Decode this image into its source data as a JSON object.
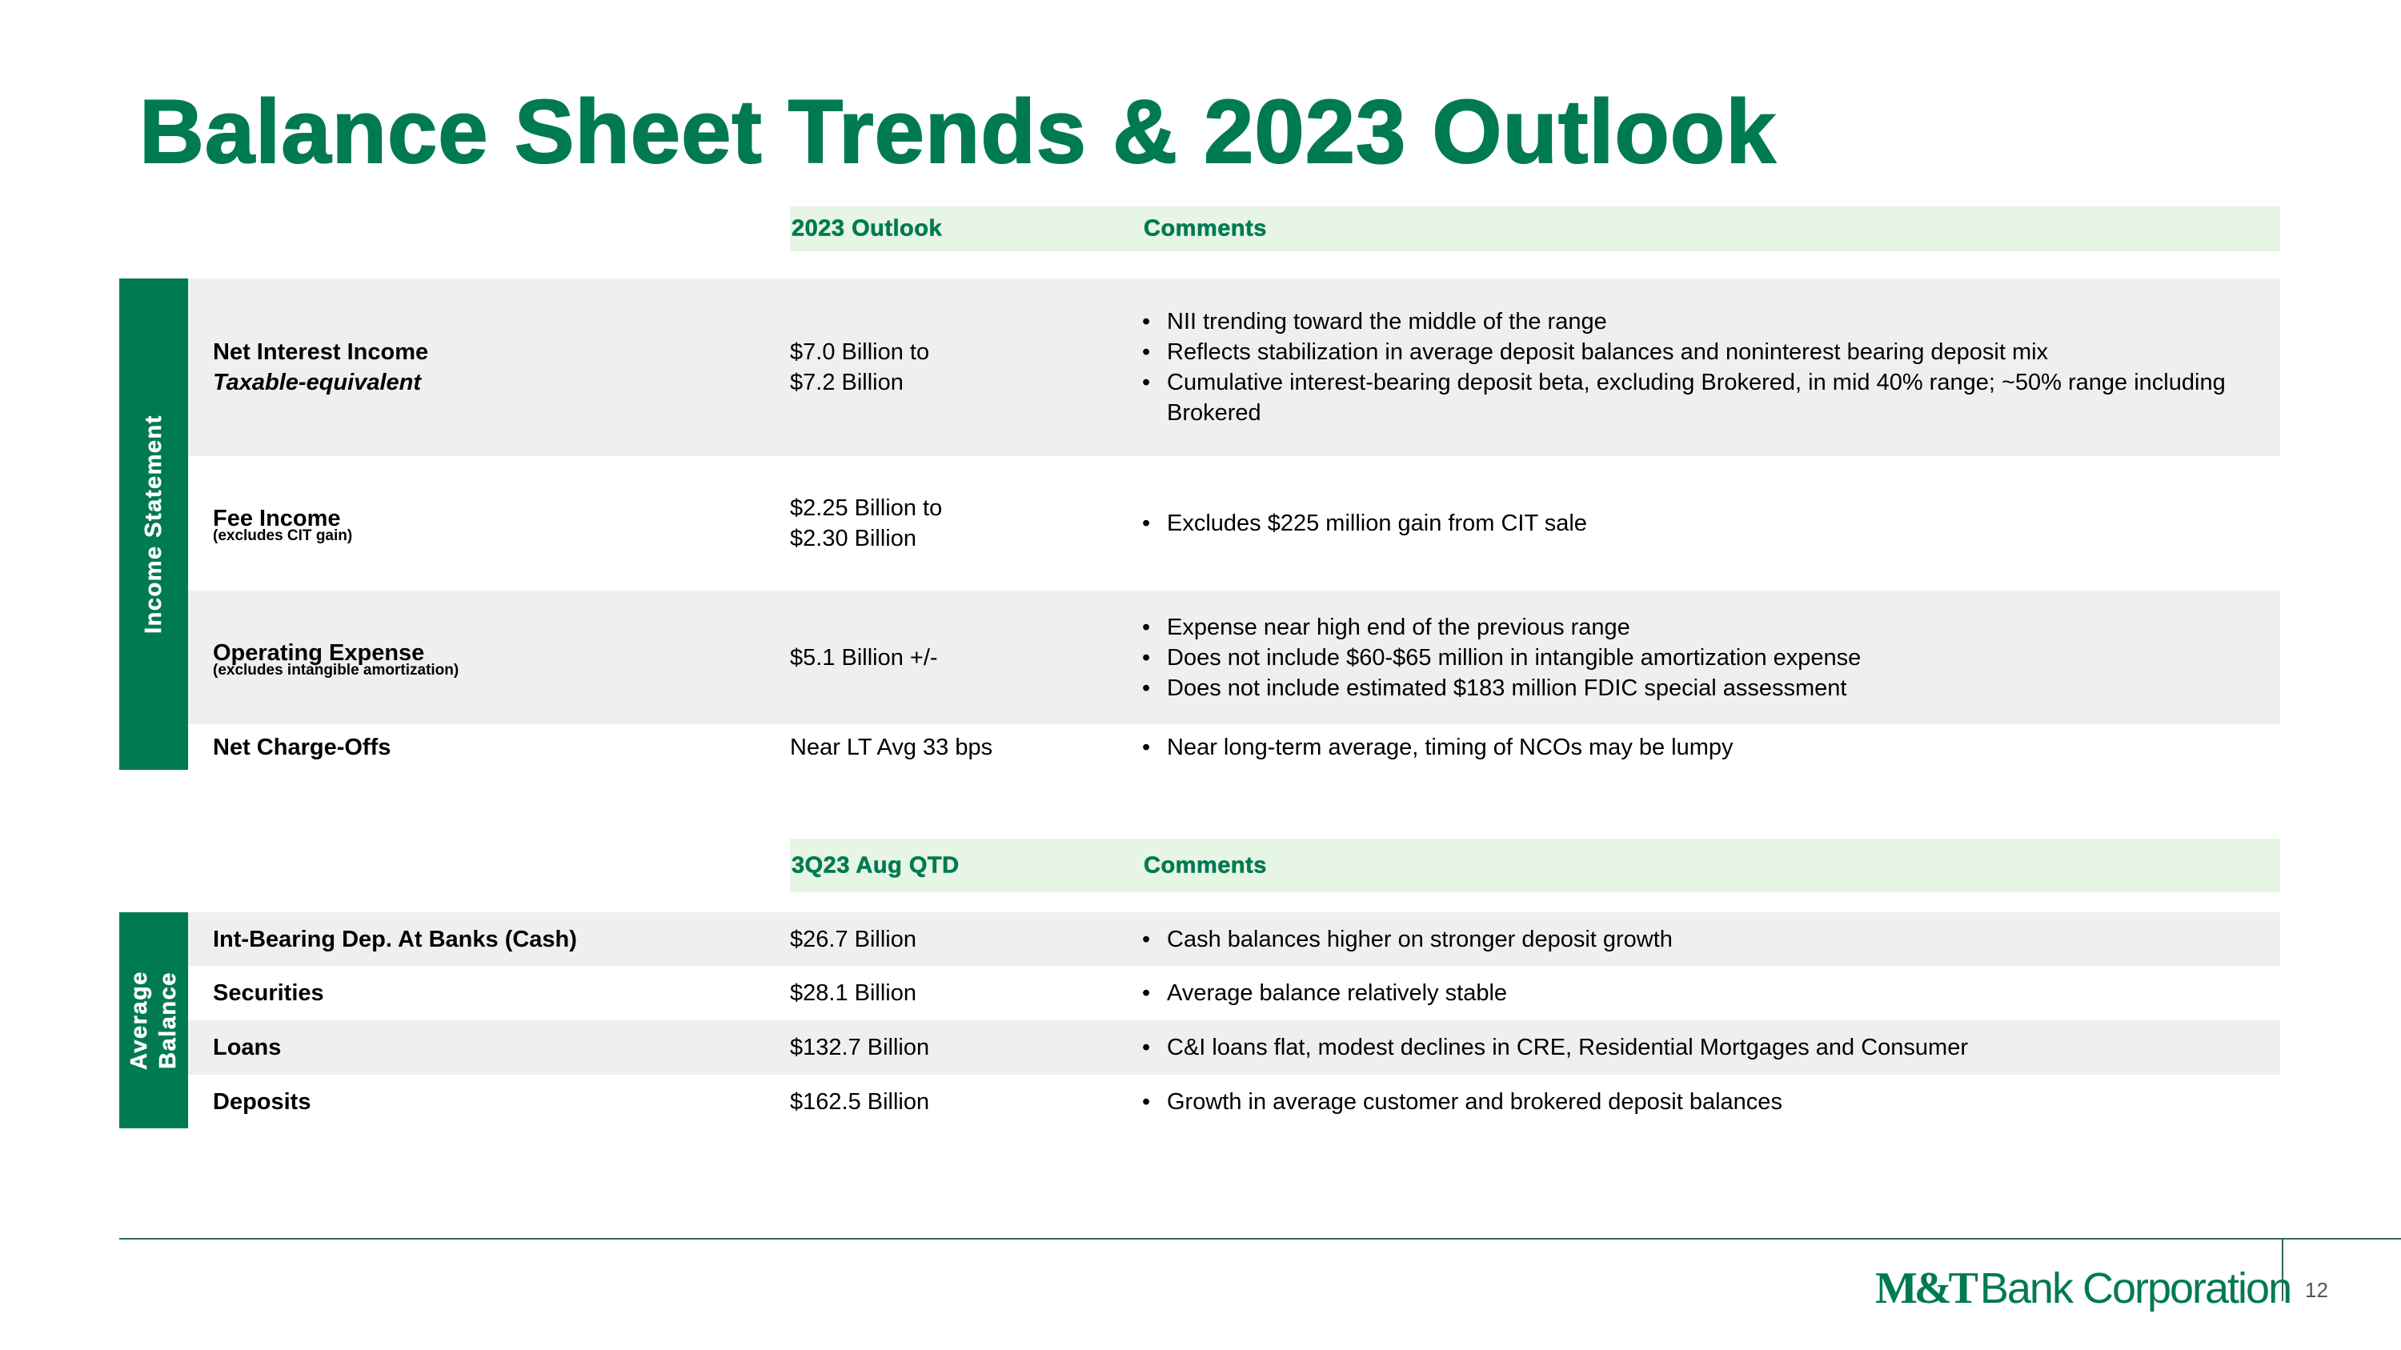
{
  "title": "Balance Sheet Trends & 2023 Outlook",
  "income_statement": {
    "side_label": "Income Statement",
    "header": {
      "col1": "2023 Outlook",
      "col2": "Comments"
    },
    "rows": [
      {
        "label": "Net Interest Income",
        "sublabel": "Taxable-equivalent",
        "value_lines": [
          "$7.0 Billion to",
          "$7.2 Billion"
        ],
        "comments": [
          "NII trending toward the middle of the range",
          "Reflects stabilization in average deposit balances and noninterest bearing deposit mix",
          "Cumulative interest-bearing deposit beta, excluding Brokered, in mid 40% range; ~50% range including Brokered"
        ]
      },
      {
        "label": "Fee Income",
        "note": "(excludes CIT gain)",
        "value_lines": [
          "$2.25 Billion to",
          "$2.30 Billion"
        ],
        "comments": [
          "Excludes $225 million gain from CIT sale"
        ]
      },
      {
        "label": "Operating Expense",
        "note": "(excludes intangible amortization)",
        "value_lines": [
          "$5.1 Billion +/-"
        ],
        "comments": [
          "Expense near high end of the previous range",
          "Does not include $60-$65 million in intangible amortization expense",
          "Does not include estimated $183 million FDIC special assessment"
        ]
      },
      {
        "label": "Net Charge-Offs",
        "value_lines": [
          "Near LT Avg 33 bps"
        ],
        "comments": [
          "Near long-term average, timing of NCOs may be lumpy"
        ]
      }
    ]
  },
  "average_balance": {
    "side_label_lines": [
      "Average",
      "Balance"
    ],
    "header": {
      "col1": "3Q23 Aug QTD",
      "col2": "Comments"
    },
    "rows": [
      {
        "label": "Int-Bearing Dep. At Banks (Cash)",
        "value": "$26.7 Billion",
        "comment": "Cash balances higher on stronger deposit growth"
      },
      {
        "label": "Securities",
        "value": "$28.1 Billion",
        "comment": "Average balance relatively stable"
      },
      {
        "label": "Loans",
        "value": "$132.7 Billion",
        "comment": "C&I loans flat, modest declines in CRE, Residential Mortgages and Consumer"
      },
      {
        "label": "Deposits",
        "value": "$162.5 Billion",
        "comment": "Growth in average customer and brokered deposit balances"
      }
    ]
  },
  "footer": {
    "logo_mark": "M&T",
    "logo_text": "Bank Corporation",
    "page_number": "12"
  },
  "colors": {
    "brand_green": "#007a52",
    "header_fill": "#e6f5e4",
    "row_gray": "#eef0ef"
  }
}
